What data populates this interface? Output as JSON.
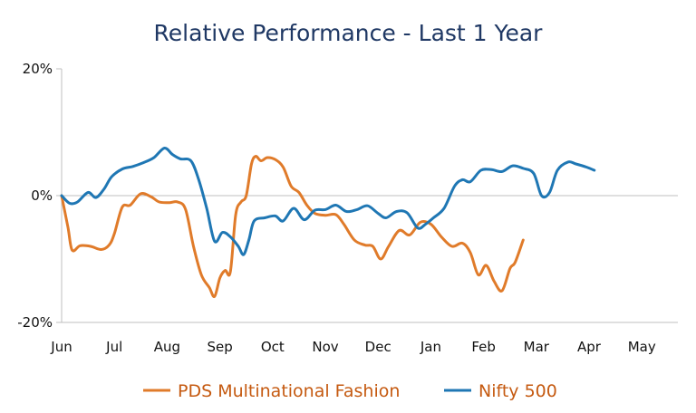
{
  "chart_data": {
    "type": "line",
    "title": "Relative Performance - Last 1 Year",
    "xlabel": "",
    "ylabel": "",
    "categories": [
      "Jun",
      "Jul",
      "Aug",
      "Sep",
      "Oct",
      "Nov",
      "Dec",
      "Jan",
      "Feb",
      "Mar",
      "Apr",
      "May"
    ],
    "ylim": [
      -20,
      20
    ],
    "yticks": [
      -20,
      0,
      20
    ],
    "ytick_labels": [
      "-20%",
      "0%",
      "20%"
    ],
    "grid": false,
    "legend_position": "bottom",
    "series": [
      {
        "name": "PDS Multinational Fashion",
        "color": "#e07b2a",
        "points": [
          [
            0.0,
            0.0
          ],
          [
            0.12,
            -5.0
          ],
          [
            0.2,
            -8.6
          ],
          [
            0.35,
            -7.9
          ],
          [
            0.55,
            -8.0
          ],
          [
            0.75,
            -8.5
          ],
          [
            0.9,
            -7.8
          ],
          [
            1.0,
            -6.0
          ],
          [
            1.15,
            -1.8
          ],
          [
            1.3,
            -1.5
          ],
          [
            1.5,
            0.3
          ],
          [
            1.7,
            -0.2
          ],
          [
            1.85,
            -1.0
          ],
          [
            2.05,
            -1.1
          ],
          [
            2.2,
            -1.0
          ],
          [
            2.35,
            -2.2
          ],
          [
            2.5,
            -8.0
          ],
          [
            2.65,
            -12.5
          ],
          [
            2.8,
            -14.5
          ],
          [
            2.9,
            -15.9
          ],
          [
            3.0,
            -13.0
          ],
          [
            3.1,
            -11.8
          ],
          [
            3.2,
            -12.0
          ],
          [
            3.3,
            -3.0
          ],
          [
            3.4,
            -1.0
          ],
          [
            3.5,
            0.0
          ],
          [
            3.6,
            5.0
          ],
          [
            3.68,
            6.2
          ],
          [
            3.78,
            5.5
          ],
          [
            3.9,
            6.0
          ],
          [
            4.05,
            5.7
          ],
          [
            4.2,
            4.5
          ],
          [
            4.35,
            1.5
          ],
          [
            4.5,
            0.5
          ],
          [
            4.65,
            -1.5
          ],
          [
            4.8,
            -2.8
          ],
          [
            5.0,
            -3.1
          ],
          [
            5.2,
            -3.0
          ],
          [
            5.35,
            -4.5
          ],
          [
            5.55,
            -7.0
          ],
          [
            5.75,
            -7.8
          ],
          [
            5.9,
            -8.0
          ],
          [
            6.05,
            -10.0
          ],
          [
            6.2,
            -8.0
          ],
          [
            6.4,
            -5.5
          ],
          [
            6.6,
            -6.2
          ],
          [
            6.8,
            -4.2
          ],
          [
            7.0,
            -4.5
          ],
          [
            7.2,
            -6.5
          ],
          [
            7.4,
            -8.0
          ],
          [
            7.6,
            -7.5
          ],
          [
            7.75,
            -9.0
          ],
          [
            7.9,
            -12.5
          ],
          [
            8.05,
            -11.0
          ],
          [
            8.2,
            -13.5
          ],
          [
            8.35,
            -15.0
          ],
          [
            8.5,
            -11.5
          ],
          [
            8.6,
            -10.5
          ],
          [
            8.75,
            -7.0
          ]
        ]
      },
      {
        "name": "Nifty 500",
        "color": "#1f77b4",
        "points": [
          [
            0.0,
            0.0
          ],
          [
            0.15,
            -1.2
          ],
          [
            0.3,
            -1.0
          ],
          [
            0.5,
            0.5
          ],
          [
            0.65,
            -0.3
          ],
          [
            0.8,
            1.0
          ],
          [
            0.95,
            3.0
          ],
          [
            1.15,
            4.2
          ],
          [
            1.35,
            4.6
          ],
          [
            1.55,
            5.2
          ],
          [
            1.75,
            6.0
          ],
          [
            1.95,
            7.5
          ],
          [
            2.1,
            6.5
          ],
          [
            2.25,
            5.8
          ],
          [
            2.45,
            5.5
          ],
          [
            2.6,
            2.5
          ],
          [
            2.75,
            -2.0
          ],
          [
            2.9,
            -7.2
          ],
          [
            3.05,
            -5.8
          ],
          [
            3.2,
            -6.5
          ],
          [
            3.35,
            -8.0
          ],
          [
            3.45,
            -9.3
          ],
          [
            3.55,
            -7.0
          ],
          [
            3.65,
            -4.0
          ],
          [
            3.85,
            -3.5
          ],
          [
            4.05,
            -3.2
          ],
          [
            4.2,
            -4.0
          ],
          [
            4.4,
            -2.0
          ],
          [
            4.6,
            -3.8
          ],
          [
            4.8,
            -2.3
          ],
          [
            5.0,
            -2.2
          ],
          [
            5.2,
            -1.5
          ],
          [
            5.4,
            -2.5
          ],
          [
            5.6,
            -2.2
          ],
          [
            5.8,
            -1.6
          ],
          [
            6.0,
            -2.8
          ],
          [
            6.15,
            -3.5
          ],
          [
            6.35,
            -2.5
          ],
          [
            6.55,
            -2.7
          ],
          [
            6.75,
            -5.1
          ],
          [
            6.9,
            -4.5
          ],
          [
            7.05,
            -3.5
          ],
          [
            7.25,
            -2.0
          ],
          [
            7.45,
            1.5
          ],
          [
            7.6,
            2.5
          ],
          [
            7.75,
            2.2
          ],
          [
            7.95,
            4.0
          ],
          [
            8.15,
            4.1
          ],
          [
            8.35,
            3.8
          ],
          [
            8.55,
            4.7
          ],
          [
            8.75,
            4.3
          ],
          [
            8.95,
            3.5
          ],
          [
            9.1,
            0.0
          ],
          [
            9.25,
            0.5
          ],
          [
            9.4,
            4.0
          ],
          [
            9.6,
            5.3
          ],
          [
            9.75,
            5.0
          ],
          [
            9.95,
            4.5
          ],
          [
            10.1,
            4.0
          ]
        ]
      }
    ]
  }
}
